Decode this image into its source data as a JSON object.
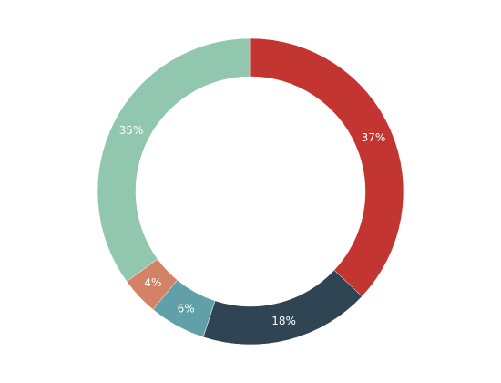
{
  "chart_data": {
    "type": "donut",
    "values": [
      37,
      18,
      6,
      4,
      35
    ],
    "value_labels": [
      "37%",
      "18%",
      "6%",
      "4%",
      "35%"
    ],
    "colors": [
      "#c23531",
      "#2f4554",
      "#61a0a8",
      "#d48265",
      "#91c7ae"
    ]
  }
}
